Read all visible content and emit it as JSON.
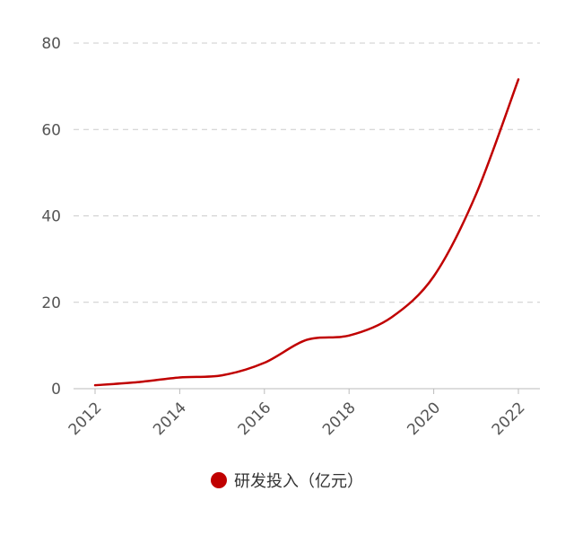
{
  "chart_data": {
    "type": "line",
    "title": "",
    "xlabel": "",
    "ylabel": "",
    "x": [
      2012,
      2013,
      2014,
      2015,
      2016,
      2017,
      2018,
      2019,
      2020,
      2021,
      2022
    ],
    "series": [
      {
        "name": "研发投入（亿元）",
        "color": "#c00000",
        "values": [
          0.8,
          1.5,
          2.6,
          3.1,
          6.0,
          11.3,
          12.3,
          16.5,
          26.0,
          45.0,
          71.6
        ]
      }
    ],
    "ylim": [
      0,
      80
    ],
    "yticks": [
      0,
      20,
      40,
      60,
      80
    ],
    "xticks": [
      "2012",
      "2014",
      "2016",
      "2018",
      "2020",
      "2022"
    ],
    "xlim": [
      2012,
      2022
    ],
    "grid": {
      "horizontal": true,
      "style": "dashed",
      "color": "#cccccc"
    },
    "legend": {
      "position": "bottom-center"
    }
  }
}
